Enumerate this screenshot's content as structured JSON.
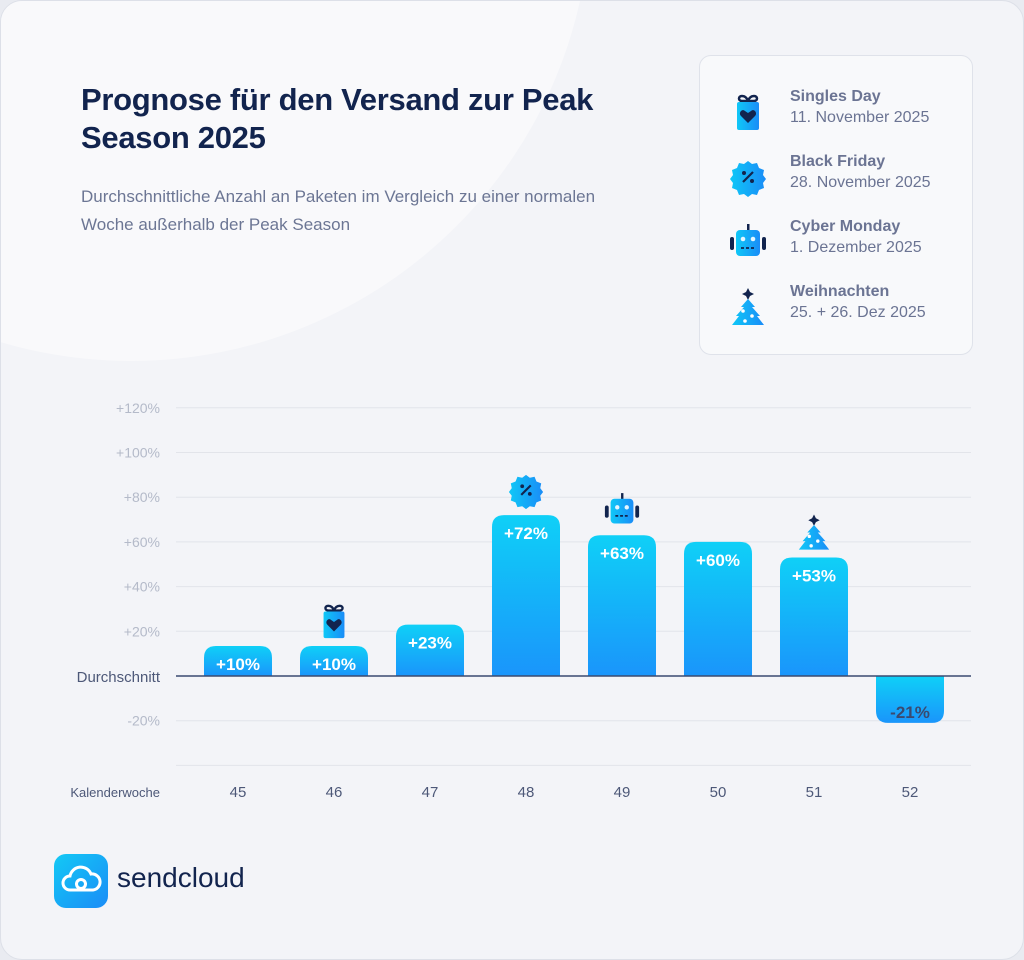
{
  "header": {
    "title": "Prognose für den Versand zur Peak Season 2025",
    "subtitle": "Durchschnittliche Anzahl an Paketen im Vergleich zu einer normalen Woche außerhalb der Peak Season"
  },
  "legend": {
    "items": [
      {
        "name": "Singles Day",
        "date": "11. November 2025",
        "icon": "gift-heart-icon"
      },
      {
        "name": "Black Friday",
        "date": "28. November 2025",
        "icon": "percent-badge-icon"
      },
      {
        "name": "Cyber Monday",
        "date": "1. Dezember 2025",
        "icon": "robot-icon"
      },
      {
        "name": "Weihnachten",
        "date": "25. + 26. Dez 2025",
        "icon": "christmas-tree-icon"
      }
    ]
  },
  "colors": {
    "bar_top": "#0fd0f7",
    "bar_bottom": "#1a95fb",
    "title": "#12244e",
    "text": "#6b7493"
  },
  "chart_data": {
    "type": "bar",
    "xlabel": "Kalenderwoche",
    "baseline_label": "Durchschnitt",
    "categories": [
      "45",
      "46",
      "47",
      "48",
      "49",
      "50",
      "51",
      "52"
    ],
    "values": [
      10,
      10,
      23,
      72,
      63,
      60,
      53,
      -21
    ],
    "data_labels": [
      "+10%",
      "+10%",
      "+23%",
      "+72%",
      "+63%",
      "+60%",
      "+53%",
      "-21%"
    ],
    "bar_icons": [
      null,
      "gift-heart-icon",
      null,
      "percent-badge-icon",
      "robot-icon",
      null,
      "christmas-tree-icon",
      null
    ],
    "yticks": [
      120,
      100,
      80,
      60,
      40,
      20,
      -20
    ],
    "ytick_labels": [
      "+120%",
      "+100%",
      "+80%",
      "+60%",
      "+40%",
      "+20%",
      "-20%"
    ],
    "ylim": [
      -40,
      120
    ],
    "grid": true
  },
  "brand": {
    "name": "sendcloud"
  }
}
